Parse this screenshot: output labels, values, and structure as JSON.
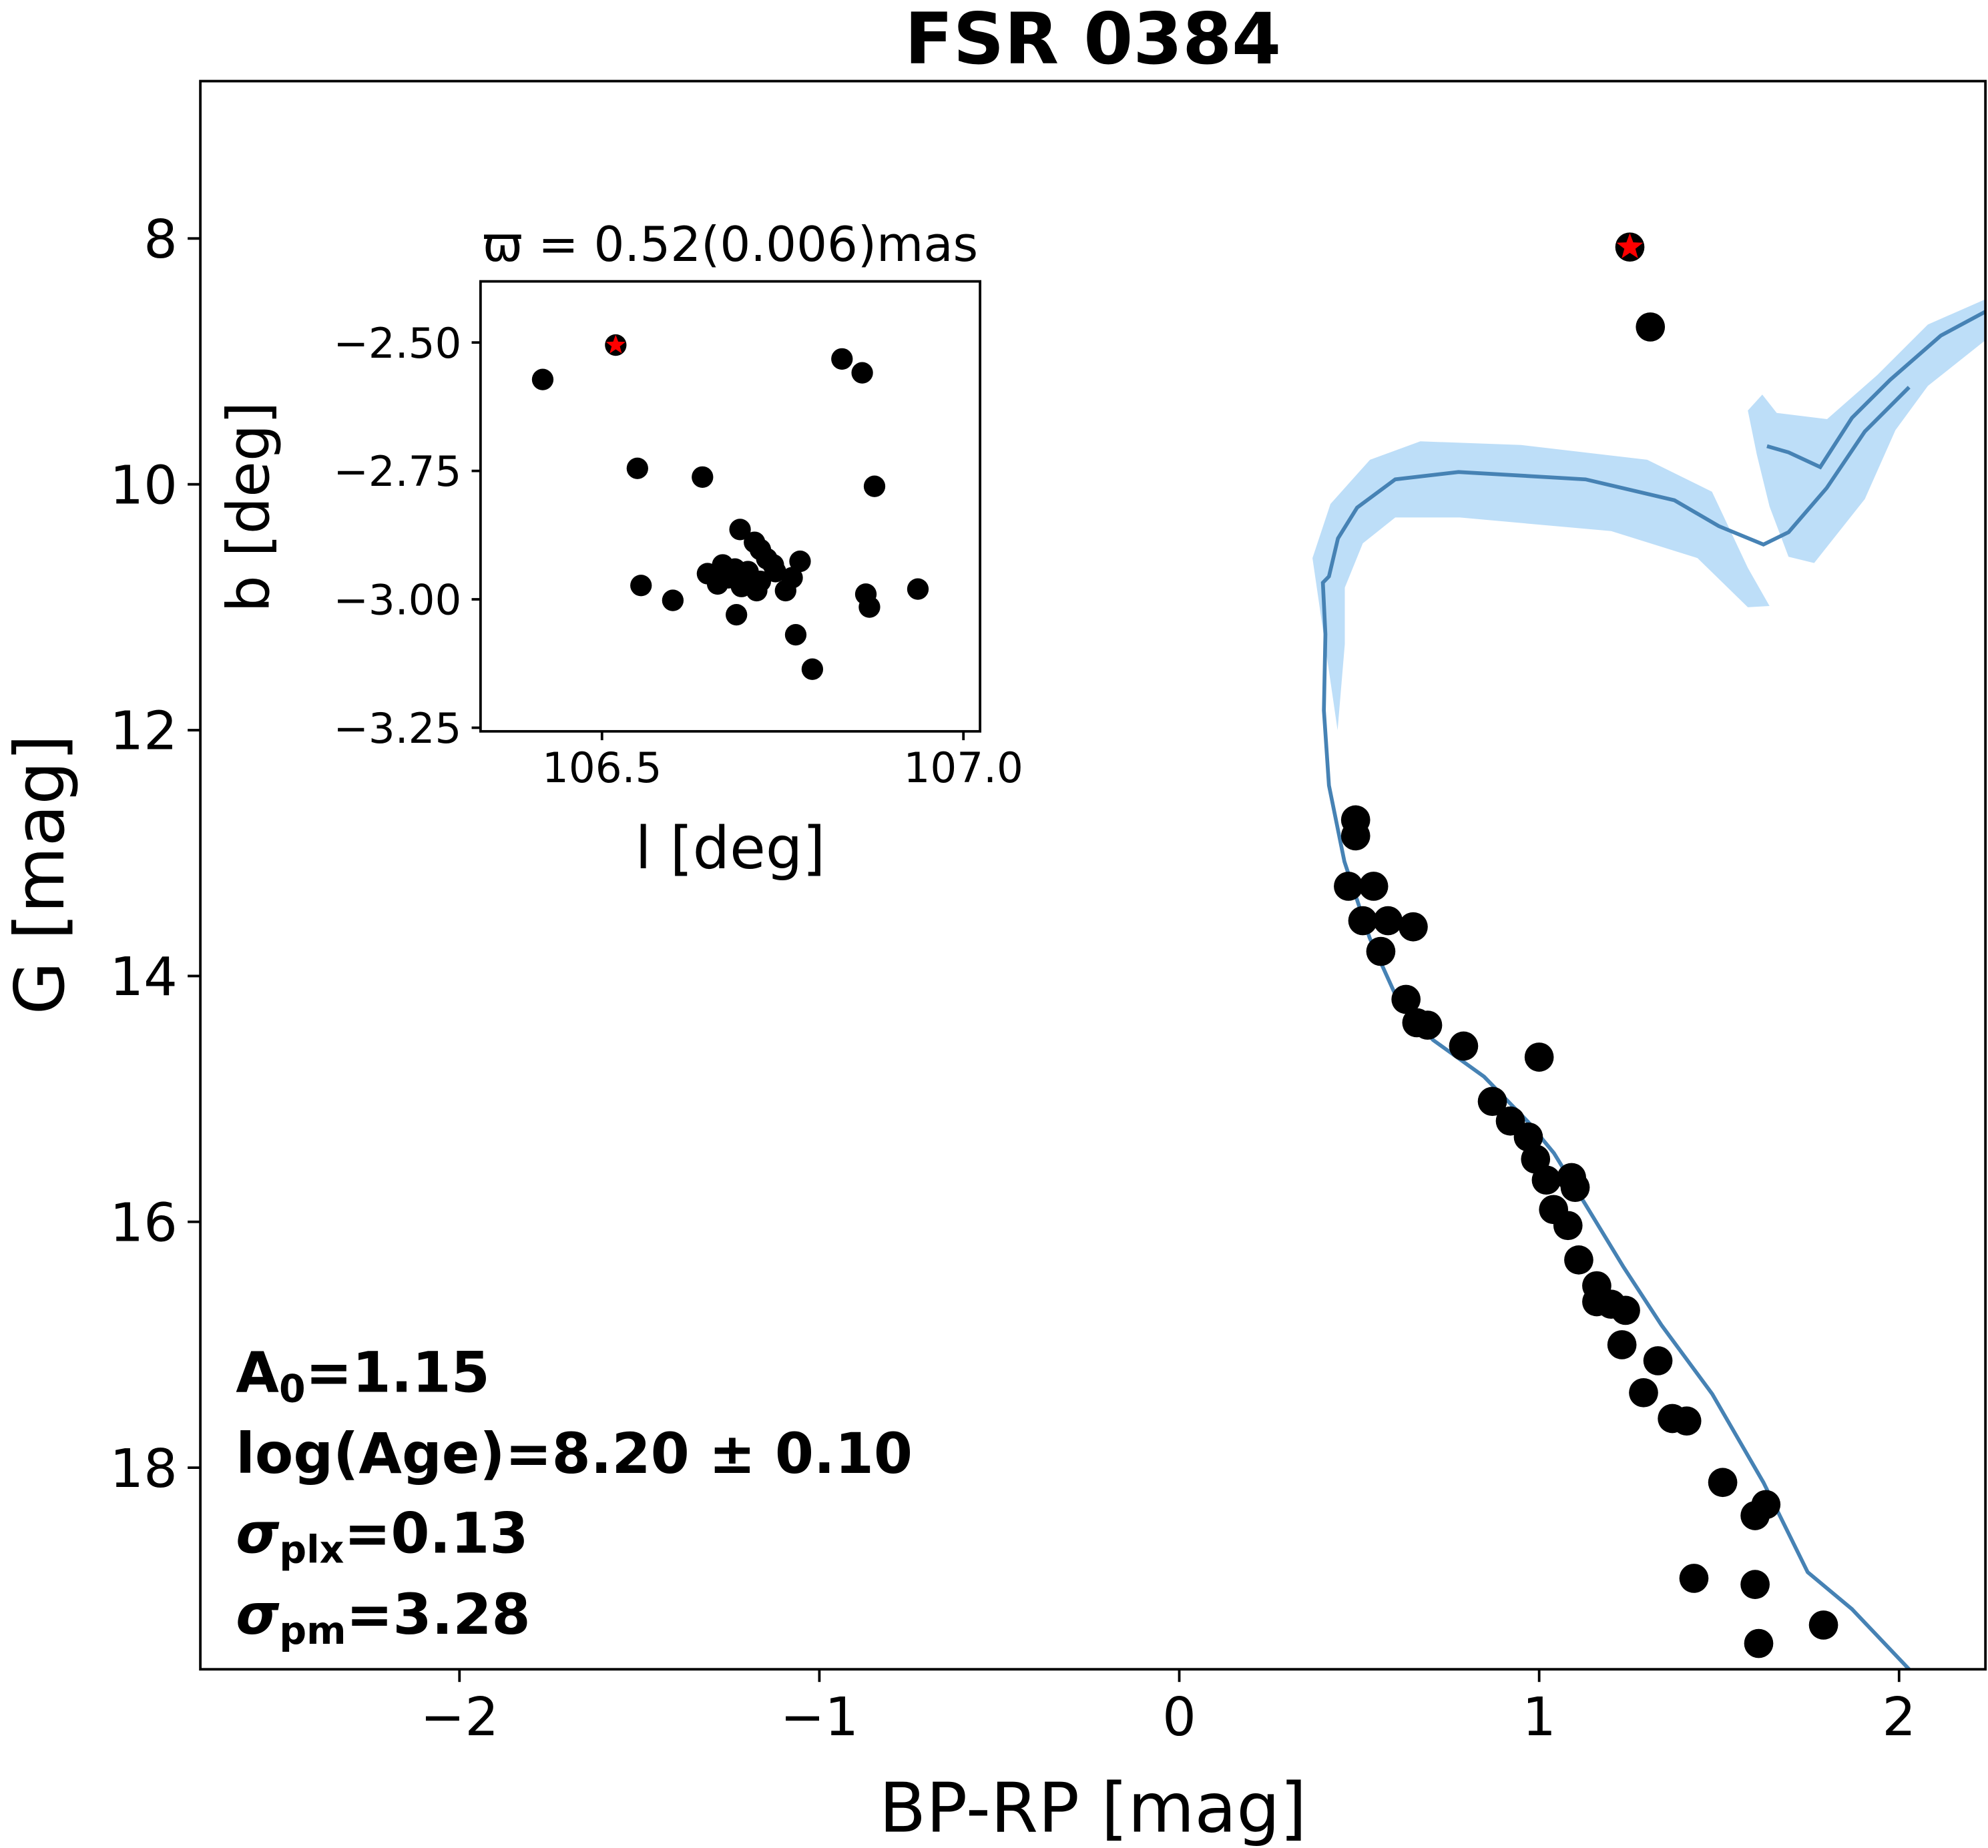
{
  "chart_data": [
    {
      "type": "scatter",
      "title": "FSR 0384",
      "xlabel": "BP-RP [mag]",
      "ylabel": "G [mag]",
      "xlim": [
        -2.72,
        2.24
      ],
      "ylim": [
        19.64,
        6.72
      ],
      "y_inverted": true,
      "xticks": [
        -2,
        -1,
        0,
        1,
        2
      ],
      "xtick_labels": [
        "−2",
        "−1",
        "0",
        "1",
        "2"
      ],
      "yticks": [
        8,
        10,
        12,
        14,
        16,
        18
      ],
      "ytick_labels": [
        "8",
        "10",
        "12",
        "14",
        "16",
        "18"
      ],
      "grid": false,
      "annotations": {
        "a0_label": "A",
        "a0_sub": "0",
        "a0_value": "=1.15",
        "age": "log(Age)=8.20 ± 0.10",
        "sigma_plx_label": "σ",
        "sigma_plx_sub": "plx",
        "sigma_plx_value": "=0.13",
        "sigma_pm_label": "σ",
        "sigma_pm_sub": "pm",
        "sigma_pm_value": "=3.28"
      },
      "highlight_star": {
        "x": 1.252,
        "y": 8.07,
        "color": "#ff0000"
      },
      "members": {
        "color": "#000000",
        "x": [
          1.309,
          0.49,
          0.49,
          0.47,
          0.54,
          0.51,
          0.58,
          0.65,
          0.56,
          0.63,
          0.69,
          0.66,
          0.79,
          1.0,
          0.87,
          0.92,
          0.97,
          0.99,
          1.02,
          1.09,
          1.1,
          1.04,
          1.08,
          1.11,
          1.16,
          1.2,
          1.16,
          1.24,
          1.23,
          1.33,
          1.29,
          1.37,
          1.41,
          1.51,
          1.63,
          1.6,
          1.43,
          1.6,
          1.79,
          1.61
        ],
        "y": [
          8.72,
          12.73,
          12.86,
          13.27,
          13.27,
          13.55,
          13.55,
          13.6,
          13.8,
          14.19,
          14.4,
          14.38,
          14.57,
          14.66,
          15.02,
          15.18,
          15.31,
          15.49,
          15.66,
          15.64,
          15.72,
          15.9,
          16.03,
          16.31,
          16.52,
          16.67,
          16.65,
          16.72,
          17.0,
          17.13,
          17.39,
          17.6,
          17.62,
          18.12,
          18.3,
          18.39,
          18.9,
          18.95,
          19.28,
          19.43
        ]
      },
      "isochrone": {
        "color": "#4682b4",
        "band_color": "#a7d3f5",
        "main": {
          "x": [
            2.028,
            1.869,
            1.746,
            1.623,
            1.481,
            1.34,
            1.235,
            1.129,
            1.041,
            0.97,
            0.847,
            0.705,
            0.6,
            0.529,
            0.459,
            0.416,
            0.402,
            0.406,
            0.399,
            0.416,
            0.441,
            0.494,
            0.6,
            0.776,
            1.129,
            1.376,
            1.499,
            1.623,
            1.693,
            1.799,
            1.905,
            2.028
          ],
          "y": [
            19.64,
            19.15,
            18.85,
            18.12,
            17.4,
            16.84,
            16.37,
            15.86,
            15.44,
            15.19,
            14.82,
            14.52,
            14.15,
            13.69,
            13.07,
            12.45,
            11.84,
            11.22,
            10.8,
            10.75,
            10.44,
            10.19,
            9.96,
            9.9,
            9.96,
            10.13,
            10.34,
            10.49,
            10.39,
            10.03,
            9.57,
            9.21
          ]
        },
        "rgb": {
          "x": [
            1.633,
            1.693,
            1.781,
            1.869,
            1.975,
            2.116,
            2.243
          ],
          "y": [
            9.69,
            9.74,
            9.86,
            9.46,
            9.15,
            8.79,
            8.59
          ]
        },
        "band_upper": {
          "x": [
            0.37,
            0.42,
            0.53,
            0.67,
            0.95,
            1.3,
            1.48,
            1.58,
            1.64,
            1.58,
            1.44,
            1.2,
            0.78,
            0.6,
            0.51,
            0.46,
            0.46,
            0.44
          ],
          "y": [
            10.6,
            10.16,
            9.8,
            9.65,
            9.68,
            9.8,
            10.06,
            10.68,
            10.99,
            11.0,
            10.6,
            10.38,
            10.27,
            10.27,
            10.48,
            10.84,
            11.3,
            12.0
          ]
        },
        "band_rgb": {
          "x": [
            1.58,
            1.62,
            1.66,
            1.8,
            1.94,
            2.08,
            2.243,
            2.243,
            2.08,
            1.99,
            1.905,
            1.764,
            1.693,
            1.64,
            1.605
          ],
          "y": [
            9.4,
            9.27,
            9.42,
            9.47,
            9.11,
            8.7,
            8.49,
            8.82,
            9.2,
            9.56,
            10.12,
            10.64,
            10.59,
            10.18,
            9.76
          ]
        }
      }
    },
    {
      "type": "scatter",
      "title": "ϖ = 0.52(0.006)mas",
      "xlabel": "l [deg]",
      "ylabel": "b [deg]",
      "xlim": [
        106.332,
        107.023
      ],
      "ylim": [
        -3.257,
        -2.381
      ],
      "xticks": [
        106.5,
        107.0
      ],
      "xtick_labels": [
        "106.5",
        "107.0"
      ],
      "yticks": [
        -2.5,
        -2.75,
        -3.0,
        -3.25
      ],
      "ytick_labels": [
        "−2.50",
        "−2.75",
        "−3.00",
        "−3.25"
      ],
      "highlight_star": {
        "x": 106.519,
        "y": -2.505,
        "color": "#ff0000"
      },
      "members": {
        "x": [
          106.418,
          106.832,
          106.86,
          106.549,
          106.639,
          106.877,
          106.691,
          106.554,
          106.598,
          106.686,
          106.768,
          106.791,
          106.865,
          106.87,
          106.937,
          106.711,
          106.719,
          106.728,
          106.737,
          106.667,
          106.646,
          106.66,
          106.675,
          106.693,
          106.702,
          106.714,
          106.684,
          106.754,
          106.763,
          106.774,
          106.74,
          106.719
        ],
        "y": [
          -2.572,
          -2.532,
          -2.559,
          -2.745,
          -2.762,
          -2.78,
          -2.864,
          -2.973,
          -3.002,
          -3.03,
          -3.069,
          -3.136,
          -2.99,
          -3.015,
          -2.98,
          -2.889,
          -2.903,
          -2.921,
          -2.933,
          -2.933,
          -2.95,
          -2.97,
          -2.958,
          -2.975,
          -2.946,
          -2.983,
          -2.941,
          -2.983,
          -2.958,
          -2.926,
          -2.946,
          -2.965
        ]
      }
    }
  ]
}
